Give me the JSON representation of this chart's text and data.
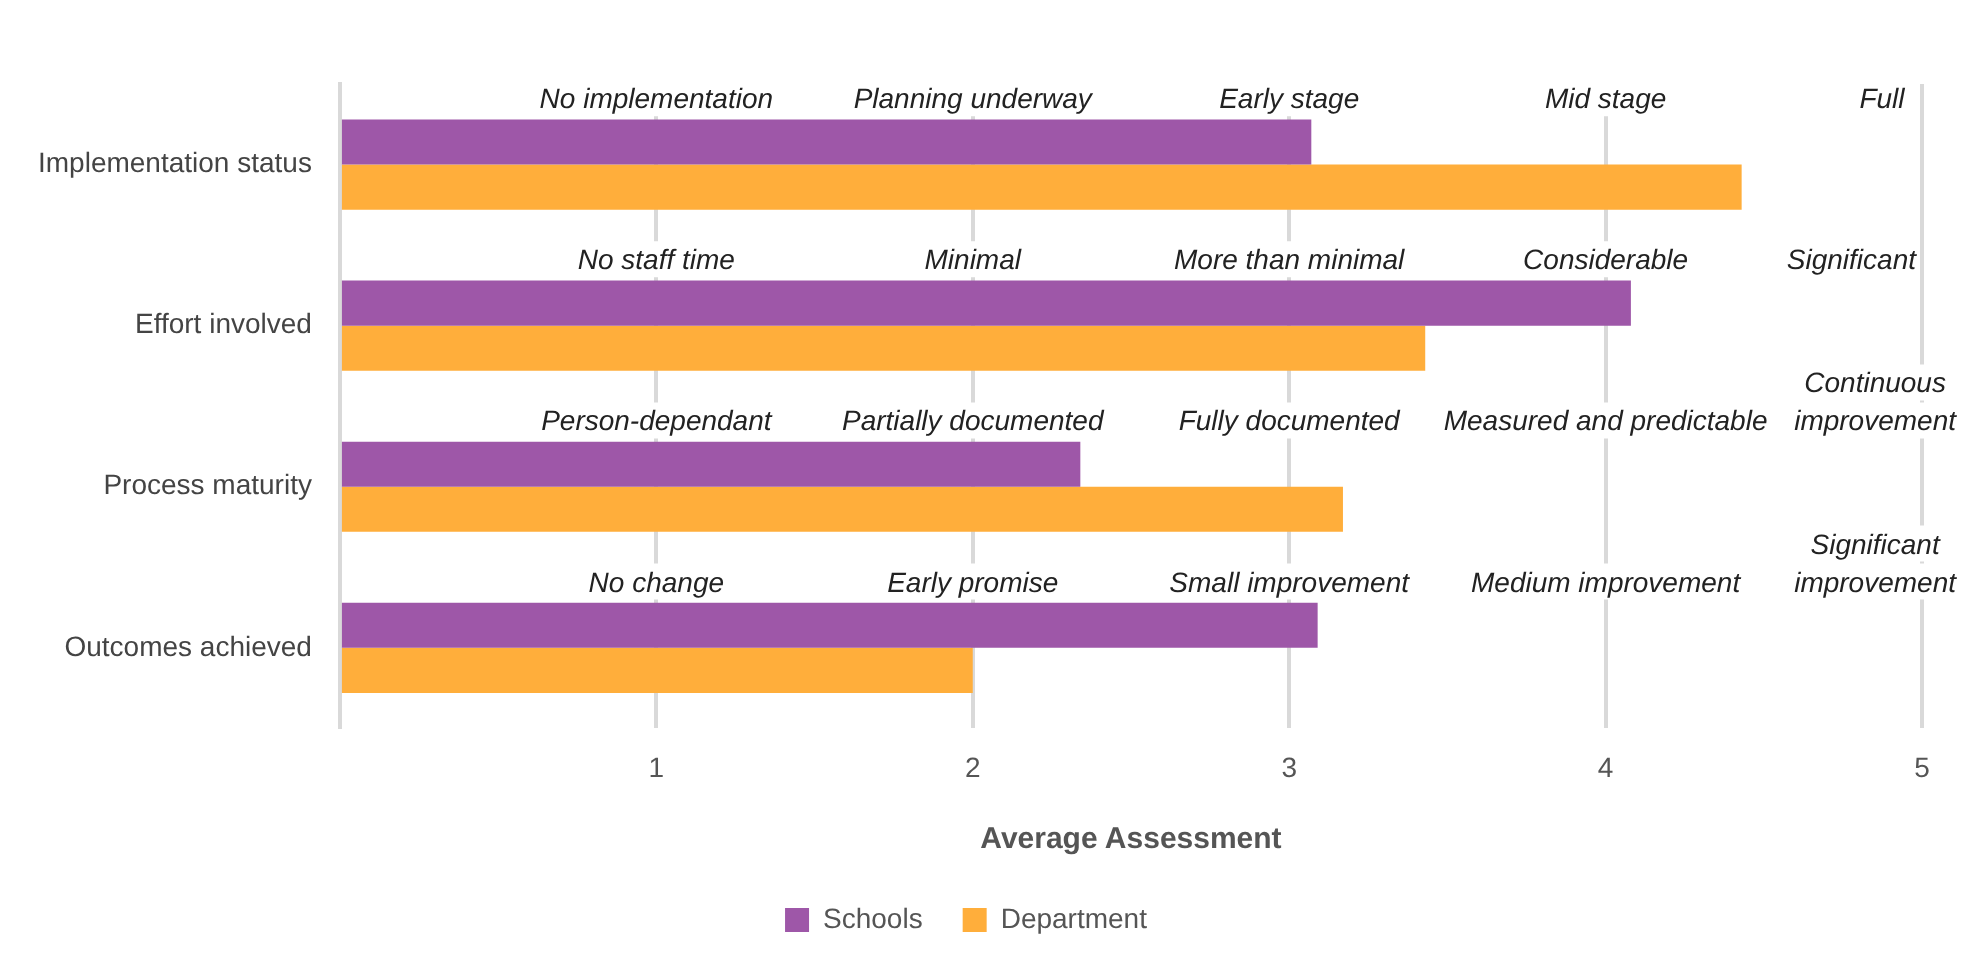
{
  "chart_data": {
    "type": "bar",
    "orientation": "horizontal",
    "xlabel": "Average Assessment",
    "categories": [
      "Implementation status",
      "Effort involved",
      "Process maturity",
      "Outcomes achieved"
    ],
    "series": [
      {
        "name": "Schools",
        "color": "#9e57a8",
        "values": [
          3.07,
          4.08,
          2.34,
          3.09
        ]
      },
      {
        "name": "Department",
        "color": "#ffae3b",
        "values": [
          4.43,
          3.43,
          3.17,
          2.0
        ]
      }
    ],
    "xlim": [
      0,
      5
    ],
    "xticks": [
      {
        "value": 0,
        "label": null
      },
      1,
      2,
      3,
      4,
      5
    ],
    "grid": "x",
    "legend": "bottom",
    "annotations": [
      "No implementation",
      "Planning underway",
      "Early stage",
      "Mid stage",
      "Full",
      "No staff time",
      "Minimal",
      "More than minimal",
      "Considerable",
      "Significant",
      "Person-dependant",
      "Partially documented",
      "Fully documented",
      "Measured and predictable",
      "Continuous improvement",
      "No change",
      "Early promise",
      "Small improvement",
      "Medium improvement",
      "Significant improvement"
    ]
  }
}
